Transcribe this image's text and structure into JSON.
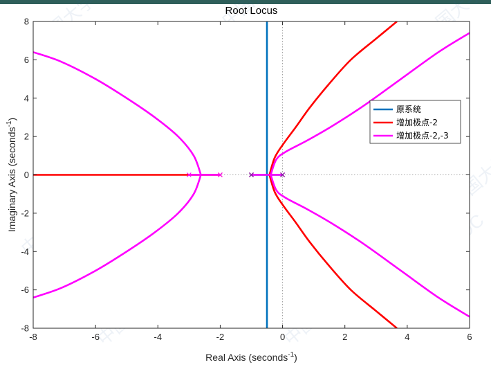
{
  "header_strip_color": "#2f5f5a",
  "chart_data": {
    "type": "line",
    "title": "Root Locus",
    "xlabel": {
      "text": "Real Axis (seconds",
      "sup": "-1",
      "close": ")"
    },
    "ylabel": {
      "text": "Imaginary Axis (seconds",
      "sup": "-1",
      "close": ")"
    },
    "xlim": [
      -8,
      6
    ],
    "ylim": [
      -8,
      8
    ],
    "xticks": [
      -8,
      -6,
      -4,
      -2,
      0,
      2,
      4,
      6
    ],
    "yticks": [
      -8,
      -6,
      -4,
      -2,
      0,
      2,
      4,
      6,
      8
    ],
    "xtick_labels": [
      "-8",
      "-6",
      "-4",
      "-2",
      "0",
      "2",
      "4",
      "6"
    ],
    "ytick_labels": [
      "-8",
      "-6",
      "-4",
      "-2",
      "0",
      "2",
      "4",
      "6",
      "8"
    ],
    "grid": false,
    "legend_position": "right",
    "legend": [
      "原系统",
      "增加极点-2",
      "增加极点-2,-3"
    ],
    "series": [
      {
        "name": "原系统",
        "color": "#0072bd",
        "poles": [
          0,
          -1
        ],
        "segments": [
          [
            [
              -1,
              0
            ],
            [
              -0.5,
              0
            ]
          ],
          [
            [
              0,
              0
            ],
            [
              -0.5,
              0
            ]
          ],
          [
            [
              -0.5,
              0
            ],
            [
              -0.5,
              8
            ]
          ],
          [
            [
              -0.5,
              0
            ],
            [
              -0.5,
              -8
            ]
          ]
        ]
      },
      {
        "name": "增加极点-2",
        "color": "#ff0000",
        "poles": [
          0,
          -1,
          -2
        ],
        "branches": [
          [
            [
              -2,
              0
            ],
            [
              -8,
              0
            ]
          ],
          [
            [
              -0.42,
              0
            ],
            [
              -0.25,
              0.9
            ],
            [
              0.02,
              1.6
            ],
            [
              0.43,
              2.5
            ],
            [
              0.87,
              3.5
            ],
            [
              1.47,
              4.7
            ],
            [
              2.19,
              6.0
            ],
            [
              3.0,
              7.1
            ],
            [
              3.67,
              8.0
            ]
          ],
          [
            [
              -0.42,
              0
            ],
            [
              -0.25,
              -0.9
            ],
            [
              0.02,
              -1.6
            ],
            [
              0.43,
              -2.5
            ],
            [
              0.87,
              -3.5
            ],
            [
              1.47,
              -4.7
            ],
            [
              2.19,
              -6.0
            ],
            [
              3.0,
              -7.1
            ],
            [
              3.67,
              -8.0
            ]
          ]
        ]
      },
      {
        "name": "增加极点-2,-3",
        "color": "#ff00ff",
        "poles": [
          0,
          -1,
          -2,
          -3
        ],
        "branches": [
          [
            [
              -2.62,
              0
            ],
            [
              -2.85,
              1.0
            ],
            [
              -3.35,
              2.0
            ],
            [
              -4.1,
              3.0
            ],
            [
              -5.0,
              4.0
            ],
            [
              -6.0,
              5.0
            ],
            [
              -7.1,
              5.9
            ],
            [
              -8.0,
              6.4
            ]
          ],
          [
            [
              -2.62,
              0
            ],
            [
              -2.85,
              -1.0
            ],
            [
              -3.35,
              -2.0
            ],
            [
              -4.1,
              -3.0
            ],
            [
              -5.0,
              -4.0
            ],
            [
              -6.0,
              -5.0
            ],
            [
              -7.1,
              -5.9
            ],
            [
              -8.0,
              -6.4
            ]
          ],
          [
            [
              -0.38,
              0
            ],
            [
              -0.2,
              0.8
            ],
            [
              0.1,
              1.2
            ],
            [
              0.8,
              1.8
            ],
            [
              1.6,
              2.55
            ],
            [
              2.6,
              3.6
            ],
            [
              3.8,
              5.0
            ],
            [
              5.0,
              6.4
            ],
            [
              6.0,
              7.4
            ]
          ],
          [
            [
              -0.38,
              0
            ],
            [
              -0.2,
              -0.8
            ],
            [
              0.1,
              -1.2
            ],
            [
              0.8,
              -1.8
            ],
            [
              1.6,
              -2.55
            ],
            [
              2.6,
              -3.6
            ],
            [
              3.8,
              -5.0
            ],
            [
              5.0,
              -6.4
            ],
            [
              6.0,
              -7.4
            ]
          ],
          [
            [
              -3,
              0
            ],
            [
              -2.62,
              0
            ]
          ],
          [
            [
              -2,
              0
            ],
            [
              -2.62,
              0
            ]
          ],
          [
            [
              -1,
              0
            ],
            [
              -0.38,
              0
            ]
          ],
          [
            [
              0,
              0
            ],
            [
              -0.38,
              0
            ]
          ]
        ]
      }
    ]
  },
  "watermark_lettering": "中国大学MOOC"
}
